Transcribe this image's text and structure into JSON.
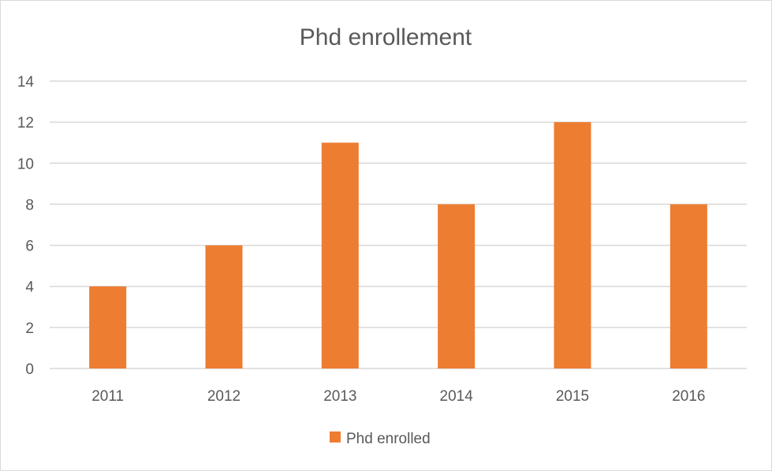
{
  "chart_data": {
    "type": "bar",
    "title": "Phd enrollement",
    "categories": [
      "2011",
      "2012",
      "2013",
      "2014",
      "2015",
      "2016"
    ],
    "series": [
      {
        "name": "Phd enrolled",
        "values": [
          4,
          6,
          11,
          8,
          12,
          8
        ],
        "color": "#ED7D31"
      }
    ],
    "xlabel": "",
    "ylabel": "",
    "ylim": [
      0,
      14
    ],
    "yticks": [
      "0",
      "2",
      "4",
      "6",
      "8",
      "10",
      "12",
      "14"
    ],
    "grid": true,
    "legend_position": "bottom",
    "colors": {
      "gridline": "#D9D9D9",
      "text": "#595959"
    }
  }
}
